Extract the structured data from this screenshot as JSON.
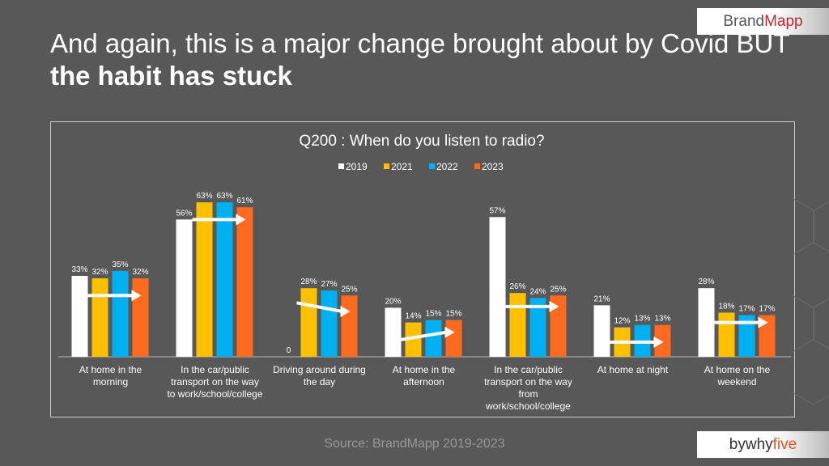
{
  "slide": {
    "title_normal": "And again, this is a major change brought about by Covid BUT ",
    "title_bold": "the habit has stuck",
    "brand_logo": "BrandMapp",
    "brand_logo_a": "Brand",
    "brand_logo_b": "Mapp",
    "partner_logo": "bywhyfive",
    "partner_a": "bywhy",
    "partner_b": "five",
    "source": "Source: BrandMapp 2019-2023"
  },
  "chart_data": {
    "type": "bar",
    "title": "Q200 : When do you listen to radio?",
    "legend_position": "top",
    "ylim": [
      0,
      70
    ],
    "categories": [
      [
        "At home in the",
        "morning"
      ],
      [
        "In the car/public",
        "transport on the way",
        "to work/school/college"
      ],
      [
        "Driving around during",
        "the day"
      ],
      [
        "At home in the",
        "afternoon"
      ],
      [
        "In the car/public",
        "transport on the way",
        "from",
        "work/school/college"
      ],
      [
        "At home at night"
      ],
      [
        "At home on the",
        "weekend"
      ]
    ],
    "series": [
      {
        "name": "2019",
        "color": "#ffffff",
        "values": [
          33,
          56,
          0,
          20,
          57,
          21,
          28
        ],
        "labels": [
          "33%",
          "56%",
          "0",
          "20%",
          "57%",
          "21%",
          "28%"
        ]
      },
      {
        "name": "2021",
        "color": "#ffc000",
        "values": [
          32,
          63,
          28,
          14,
          26,
          12,
          18
        ],
        "labels": [
          "32%",
          "63%",
          "28%",
          "14%",
          "26%",
          "12%",
          "18%"
        ]
      },
      {
        "name": "2022",
        "color": "#00b0f0",
        "values": [
          35,
          63,
          27,
          15,
          24,
          13,
          17
        ],
        "labels": [
          "35%",
          "63%",
          "27%",
          "15%",
          "24%",
          "13%",
          "17%"
        ]
      },
      {
        "name": "2023",
        "color": "#ff6a21",
        "values": [
          32,
          61,
          25,
          15,
          25,
          13,
          17
        ],
        "labels": [
          "32%",
          "61%",
          "25%",
          "15%",
          "25%",
          "13%",
          "17%"
        ]
      }
    ],
    "trend_arrows": [
      [
        25,
        25
      ],
      [
        56,
        56
      ],
      [
        22,
        18.5
      ],
      [
        7,
        10
      ],
      [
        20.5,
        20.5
      ],
      [
        6,
        6
      ],
      [
        14,
        14
      ]
    ]
  }
}
